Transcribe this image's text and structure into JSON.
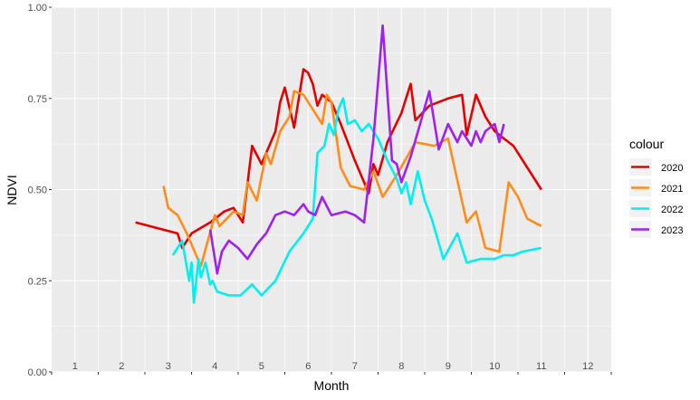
{
  "chart_data": {
    "type": "line",
    "xlabel": "Month",
    "ylabel": "NDVI",
    "ylim": [
      0,
      1
    ],
    "xlim": [
      0.5,
      12.5
    ],
    "x_ticks": [
      "1",
      "2",
      "3",
      "4",
      "5",
      "6",
      "7",
      "8",
      "9",
      "10",
      "11",
      "12"
    ],
    "y_ticks": [
      "0.00",
      "0.25",
      "0.50",
      "0.75",
      "1.00"
    ],
    "y_tick_values": [
      0,
      0.25,
      0.5,
      0.75,
      1.0
    ],
    "grid": true,
    "legend_title": "colour",
    "legend_position": "right",
    "series": [
      {
        "name": "2020",
        "color": "#e60000",
        "x": [
          2.3,
          3.2,
          3.3,
          3.5,
          3.9,
          4.2,
          4.4,
          4.6,
          4.8,
          5.0,
          5.3,
          5.4,
          5.5,
          5.7,
          5.9,
          6.0,
          6.1,
          6.2,
          6.3,
          6.4,
          6.5,
          6.7,
          7.0,
          7.3,
          7.4,
          7.5,
          7.7,
          8.0,
          8.2,
          8.3,
          8.6,
          9.0,
          9.3,
          9.4,
          9.6,
          9.8,
          10.0,
          10.2,
          10.4,
          11.0
        ],
        "values": [
          0.41,
          0.38,
          0.34,
          0.38,
          0.41,
          0.44,
          0.45,
          0.41,
          0.62,
          0.57,
          0.66,
          0.74,
          0.78,
          0.67,
          0.83,
          0.82,
          0.79,
          0.73,
          0.76,
          0.75,
          0.74,
          0.68,
          0.58,
          0.49,
          0.57,
          0.54,
          0.63,
          0.71,
          0.79,
          0.69,
          0.73,
          0.75,
          0.76,
          0.65,
          0.76,
          0.7,
          0.66,
          0.64,
          0.62,
          0.5
        ]
      },
      {
        "name": "2021",
        "color": "#ff8c1a",
        "x": [
          2.9,
          3.0,
          3.2,
          3.4,
          3.7,
          4.0,
          4.1,
          4.4,
          4.6,
          4.7,
          4.9,
          5.1,
          5.2,
          5.4,
          5.6,
          5.7,
          5.9,
          6.1,
          6.3,
          6.4,
          6.5,
          6.7,
          6.9,
          7.2,
          7.4,
          7.6,
          7.9,
          8.3,
          8.7,
          9.0,
          9.4,
          9.6,
          9.8,
          10.1,
          10.3,
          10.5,
          10.7,
          11.0
        ],
        "values": [
          0.51,
          0.45,
          0.43,
          0.38,
          0.29,
          0.43,
          0.4,
          0.44,
          0.43,
          0.52,
          0.47,
          0.6,
          0.57,
          0.66,
          0.7,
          0.77,
          0.76,
          0.72,
          0.68,
          0.76,
          0.74,
          0.56,
          0.51,
          0.5,
          0.55,
          0.48,
          0.54,
          0.63,
          0.62,
          0.64,
          0.41,
          0.44,
          0.34,
          0.33,
          0.52,
          0.48,
          0.42,
          0.4
        ]
      },
      {
        "name": "2022",
        "color": "#00f0f0",
        "x": [
          3.1,
          3.3,
          3.45,
          3.5,
          3.55,
          3.65,
          3.7,
          3.8,
          3.9,
          3.95,
          4.05,
          4.3,
          4.55,
          4.8,
          5.0,
          5.3,
          5.6,
          5.9,
          6.1,
          6.2,
          6.35,
          6.45,
          6.55,
          6.65,
          6.75,
          6.85,
          7.0,
          7.15,
          7.3,
          7.5,
          7.7,
          7.9,
          8.0,
          8.1,
          8.2,
          8.35,
          8.5,
          8.65,
          8.9,
          9.2,
          9.4,
          9.7,
          10.0,
          10.2,
          10.4,
          10.6,
          11.0
        ],
        "values": [
          0.32,
          0.36,
          0.25,
          0.3,
          0.19,
          0.31,
          0.26,
          0.3,
          0.24,
          0.25,
          0.22,
          0.21,
          0.21,
          0.24,
          0.21,
          0.25,
          0.33,
          0.38,
          0.42,
          0.6,
          0.62,
          0.68,
          0.65,
          0.72,
          0.75,
          0.68,
          0.69,
          0.66,
          0.68,
          0.64,
          0.58,
          0.53,
          0.49,
          0.52,
          0.46,
          0.55,
          0.47,
          0.42,
          0.31,
          0.38,
          0.3,
          0.31,
          0.31,
          0.32,
          0.32,
          0.33,
          0.34
        ]
      },
      {
        "name": "2023",
        "color": "#a020f0",
        "x": [
          3.9,
          4.0,
          4.05,
          4.15,
          4.3,
          4.5,
          4.7,
          4.9,
          5.1,
          5.3,
          5.5,
          5.7,
          5.9,
          6.0,
          6.15,
          6.3,
          6.5,
          6.8,
          7.0,
          7.2,
          7.4,
          7.6,
          7.8,
          7.9,
          8.0,
          8.2,
          8.4,
          8.6,
          8.8,
          9.0,
          9.2,
          9.3,
          9.5,
          9.6,
          9.7,
          9.8,
          9.9,
          10.0,
          10.1,
          10.2
        ],
        "values": [
          0.39,
          0.31,
          0.27,
          0.33,
          0.36,
          0.34,
          0.31,
          0.35,
          0.38,
          0.43,
          0.44,
          0.43,
          0.46,
          0.44,
          0.43,
          0.48,
          0.43,
          0.44,
          0.43,
          0.41,
          0.64,
          0.95,
          0.58,
          0.57,
          0.52,
          0.59,
          0.68,
          0.77,
          0.61,
          0.68,
          0.63,
          0.66,
          0.62,
          0.66,
          0.63,
          0.66,
          0.67,
          0.68,
          0.63,
          0.68
        ]
      }
    ]
  }
}
